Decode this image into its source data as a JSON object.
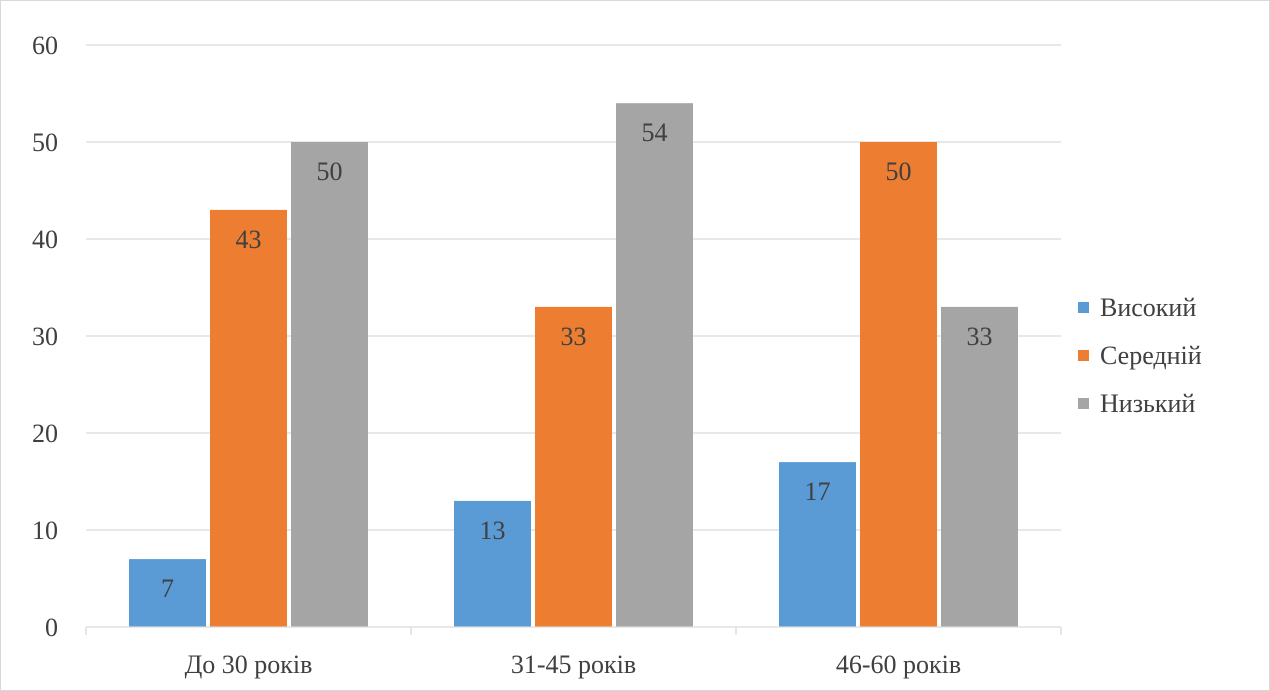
{
  "chart_data": {
    "type": "bar",
    "categories": [
      "До 30 років",
      "31-45 років",
      "46-60 років"
    ],
    "series": [
      {
        "name": "Високий",
        "values": [
          7,
          13,
          17
        ],
        "color": "#5b9bd5"
      },
      {
        "name": "Середній",
        "values": [
          43,
          33,
          50
        ],
        "color": "#ed7d31"
      },
      {
        "name": "Низький",
        "values": [
          50,
          54,
          33
        ],
        "color": "#a5a5a5"
      }
    ],
    "ylim": [
      0,
      60
    ],
    "yticks": [
      0,
      10,
      20,
      30,
      40,
      50,
      60
    ],
    "grid": true,
    "legend": "right",
    "data_labels": true
  }
}
